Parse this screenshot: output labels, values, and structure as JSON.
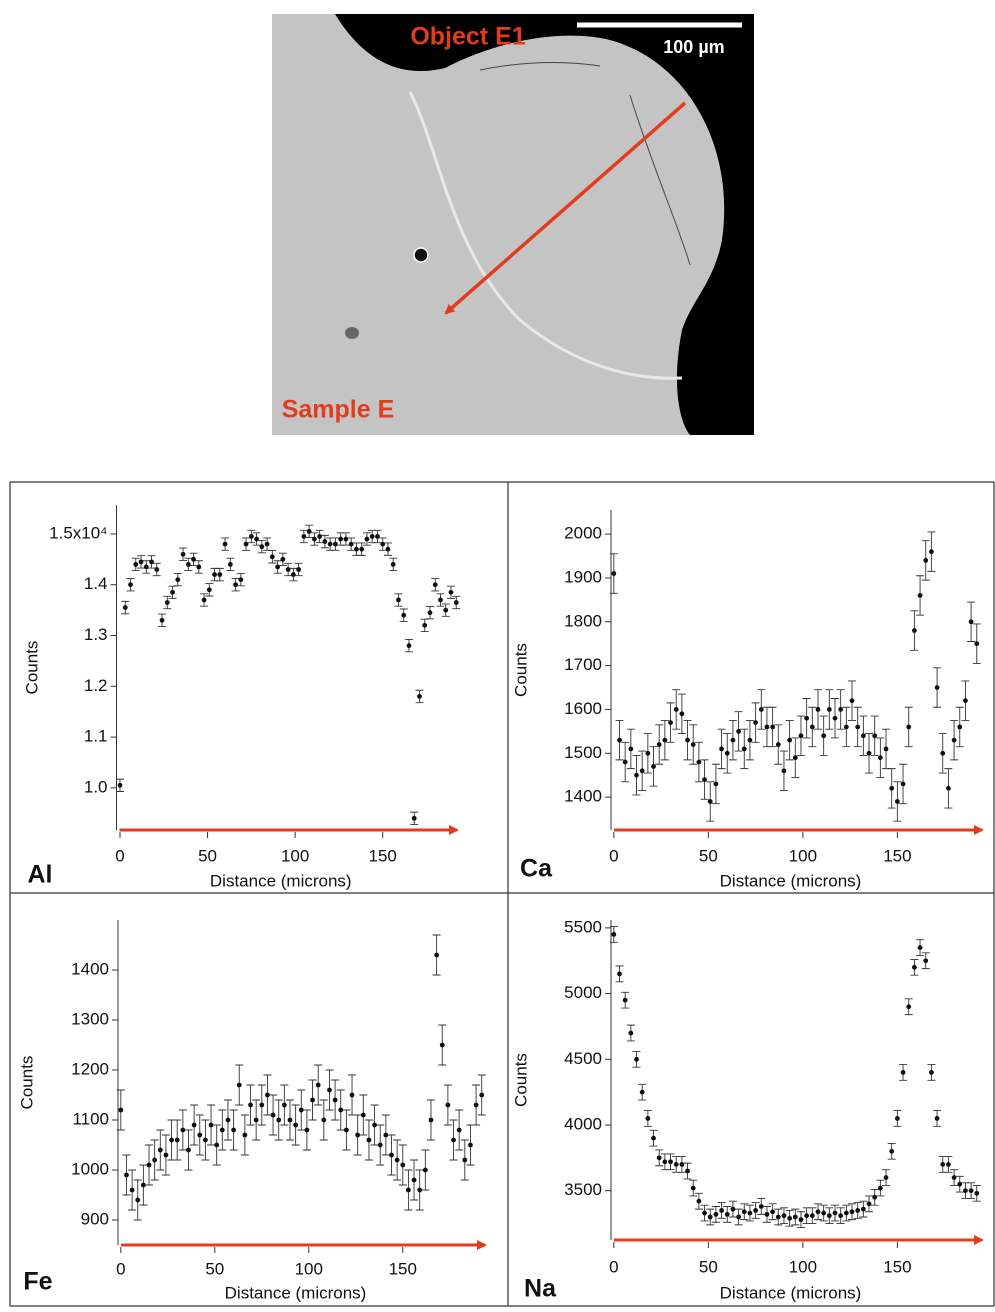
{
  "image": {
    "title": "Object E1",
    "scale": "100 µm",
    "sample": "Sample E"
  },
  "chart_data": [
    {
      "type": "scatter",
      "label": "Al",
      "x_label": "Distance (microns)",
      "y_label": "Counts",
      "x": [
        0,
        3,
        6,
        9,
        12,
        15,
        18,
        21,
        24,
        27,
        30,
        33,
        36,
        39,
        42,
        45,
        48,
        51,
        54,
        57,
        60,
        63,
        66,
        69,
        72,
        75,
        78,
        81,
        84,
        87,
        90,
        93,
        96,
        99,
        102,
        105,
        108,
        111,
        114,
        117,
        120,
        123,
        126,
        129,
        132,
        135,
        138,
        141,
        144,
        147,
        150,
        153,
        156,
        159,
        162,
        165,
        168,
        171,
        174,
        177,
        180,
        183,
        186,
        189,
        192
      ],
      "series": [
        {
          "color": "#111111",
          "error": 122,
          "values": [
            10050,
            13550,
            14000,
            14400,
            14450,
            14350,
            14450,
            14300,
            13300,
            13650,
            13850,
            14100,
            14600,
            14400,
            14500,
            14350,
            13700,
            13900,
            14200,
            14200,
            14800,
            14400,
            14000,
            14100,
            14800,
            14950,
            14900,
            14750,
            14800,
            14550,
            14350,
            14500,
            14300,
            14200,
            14300,
            14950,
            15050,
            14900,
            14950,
            14850,
            14800,
            14800,
            14900,
            14900,
            14800,
            14700,
            14700,
            14900,
            14950,
            14950,
            14800,
            14700,
            14400,
            13700,
            13400,
            12800,
            9400,
            11800,
            13200,
            13450,
            14000,
            13700,
            13500,
            13850,
            13650
          ]
        }
      ],
      "xlim": [
        -2,
        197
      ],
      "ylim": [
        9170,
        15570
      ],
      "xticks": [
        0,
        50,
        100,
        150
      ],
      "yticks": [
        {
          "value": 10000,
          "label": "1.0"
        },
        {
          "value": 11000,
          "label": "1.1"
        },
        {
          "value": 12000,
          "label": "1.2"
        },
        {
          "value": 13000,
          "label": "1.3"
        },
        {
          "value": 14000,
          "label": "1.4"
        },
        {
          "value": 15000,
          "label": "1.5x10⁴"
        }
      ]
    },
    {
      "type": "scatter",
      "label": "Ca",
      "x_label": "Distance (microns)",
      "y_label": "Counts",
      "x": [
        0,
        3,
        6,
        9,
        12,
        15,
        18,
        21,
        24,
        27,
        30,
        33,
        36,
        39,
        42,
        45,
        48,
        51,
        54,
        57,
        60,
        63,
        66,
        69,
        72,
        75,
        78,
        81,
        84,
        87,
        90,
        93,
        96,
        99,
        102,
        105,
        108,
        111,
        114,
        117,
        120,
        123,
        126,
        129,
        132,
        135,
        138,
        141,
        144,
        147,
        150,
        153,
        156,
        159,
        162,
        165,
        168,
        171,
        174,
        177,
        180,
        183,
        186,
        189,
        192
      ],
      "series": [
        {
          "color": "#111111",
          "error": 45,
          "values": [
            1910,
            1530,
            1480,
            1510,
            1450,
            1460,
            1500,
            1470,
            1520,
            1530,
            1570,
            1600,
            1590,
            1530,
            1520,
            1480,
            1440,
            1390,
            1430,
            1510,
            1500,
            1530,
            1550,
            1510,
            1530,
            1570,
            1600,
            1560,
            1560,
            1520,
            1460,
            1530,
            1490,
            1540,
            1580,
            1560,
            1600,
            1540,
            1600,
            1580,
            1600,
            1560,
            1620,
            1560,
            1540,
            1500,
            1540,
            1490,
            1510,
            1420,
            1390,
            1430,
            1560,
            1780,
            1860,
            1940,
            1960,
            1650,
            1500,
            1420,
            1530,
            1560,
            1620,
            1800,
            1750
          ]
        }
      ],
      "xlim": [
        -1.5,
        199
      ],
      "ylim": [
        1325,
        2055
      ],
      "xticks": [
        0,
        50,
        100,
        150
      ],
      "yticks": [
        1400,
        1500,
        1600,
        1700,
        1800,
        1900,
        2000
      ]
    },
    {
      "type": "scatter",
      "label": "Fe",
      "x_label": "Distance (microns)",
      "y_label": "Counts",
      "x": [
        0,
        3,
        6,
        9,
        12,
        15,
        18,
        21,
        24,
        27,
        30,
        33,
        36,
        39,
        42,
        45,
        48,
        51,
        54,
        57,
        60,
        63,
        66,
        69,
        72,
        75,
        78,
        81,
        84,
        87,
        90,
        93,
        96,
        99,
        102,
        105,
        108,
        111,
        114,
        117,
        120,
        123,
        126,
        129,
        132,
        135,
        138,
        141,
        144,
        147,
        150,
        153,
        156,
        159,
        162,
        165,
        168,
        171,
        174,
        177,
        180,
        183,
        186,
        189,
        192
      ],
      "series": [
        {
          "color": "#111111",
          "error": 40,
          "values": [
            1120,
            990,
            960,
            940,
            970,
            1010,
            1020,
            1040,
            1030,
            1060,
            1060,
            1080,
            1040,
            1090,
            1070,
            1060,
            1090,
            1050,
            1080,
            1100,
            1080,
            1170,
            1070,
            1130,
            1100,
            1130,
            1150,
            1110,
            1100,
            1130,
            1100,
            1090,
            1120,
            1080,
            1140,
            1170,
            1100,
            1160,
            1140,
            1120,
            1080,
            1150,
            1070,
            1110,
            1060,
            1090,
            1050,
            1070,
            1030,
            1020,
            1010,
            960,
            980,
            960,
            1000,
            1100,
            1430,
            1250,
            1130,
            1060,
            1080,
            1020,
            1050,
            1130,
            1150
          ]
        }
      ],
      "xlim": [
        -1.5,
        198
      ],
      "ylim": [
        850,
        1500
      ],
      "xticks": [
        0,
        50,
        100,
        150
      ],
      "yticks": [
        900,
        1000,
        1100,
        1200,
        1300,
        1400
      ]
    },
    {
      "type": "scatter",
      "label": "Na",
      "x_label": "Distance (microns)",
      "y_label": "Counts",
      "x": [
        0,
        3,
        6,
        9,
        12,
        15,
        18,
        21,
        24,
        27,
        30,
        33,
        36,
        39,
        42,
        45,
        48,
        51,
        54,
        57,
        60,
        63,
        66,
        69,
        72,
        75,
        78,
        81,
        84,
        87,
        90,
        93,
        96,
        99,
        102,
        105,
        108,
        111,
        114,
        117,
        120,
        123,
        126,
        129,
        132,
        135,
        138,
        141,
        144,
        147,
        150,
        153,
        156,
        159,
        162,
        165,
        168,
        171,
        174,
        177,
        180,
        183,
        186,
        189,
        192
      ],
      "series": [
        {
          "color": "#111111",
          "error": 60,
          "values": [
            5450,
            5150,
            4950,
            4700,
            4500,
            4250,
            4050,
            3900,
            3750,
            3720,
            3720,
            3700,
            3700,
            3650,
            3520,
            3420,
            3330,
            3300,
            3320,
            3350,
            3320,
            3360,
            3300,
            3340,
            3330,
            3350,
            3380,
            3320,
            3340,
            3300,
            3310,
            3290,
            3300,
            3280,
            3310,
            3310,
            3340,
            3330,
            3310,
            3330,
            3310,
            3330,
            3340,
            3350,
            3360,
            3400,
            3450,
            3520,
            3600,
            3800,
            4050,
            4400,
            4900,
            5200,
            5350,
            5250,
            4400,
            4050,
            3700,
            3700,
            3600,
            3550,
            3500,
            3500,
            3480
          ]
        }
      ],
      "xlim": [
        -1.5,
        199
      ],
      "ylim": [
        3125,
        5560
      ],
      "xticks": [
        0,
        50,
        100,
        150
      ],
      "yticks": [
        3500,
        4000,
        4500,
        5000,
        5500
      ]
    }
  ]
}
